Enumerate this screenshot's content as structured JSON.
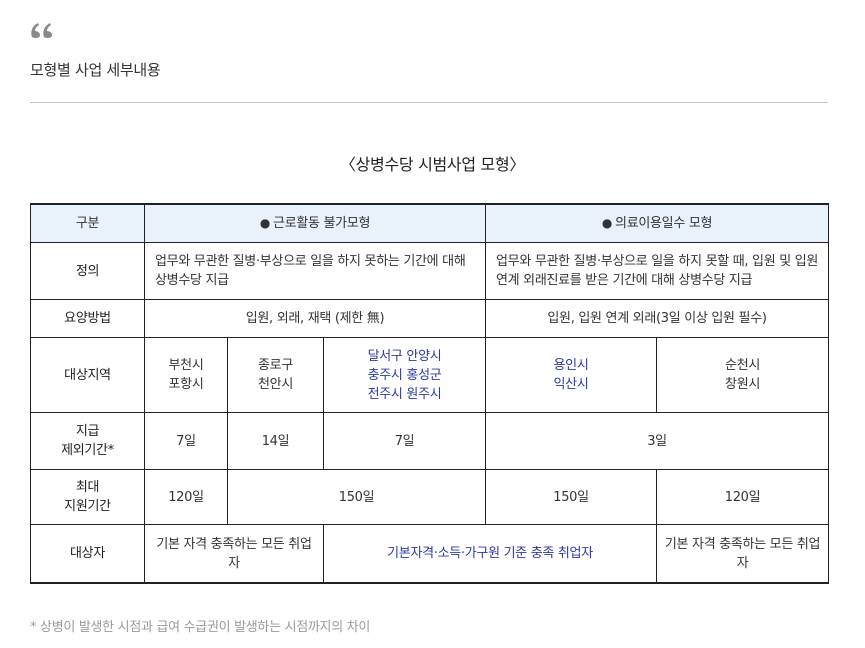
{
  "header": {
    "quote_icon": "quote-icon",
    "section_title": "모형별 사업 세부내용"
  },
  "table": {
    "title": "〈상병수당 시범사업 모형〉",
    "head": {
      "col_label": "구분",
      "model_a": "근로활동 불가모형",
      "model_b": "의료이용일수 모형",
      "bullet": "●"
    },
    "definition": {
      "label": "정의",
      "model_a": "업무와 무관한 질병·부상으로 일을 하지 못하는 기간에 대해 상병수당 지급",
      "model_b": "업무와 무관한 질병·부상으로 일을 하지 못할 때, 입원 및 입원 연계 외래진료를 받은 기간에 대해 상병수당 지급"
    },
    "method": {
      "label": "요양방법",
      "model_a": "입원, 외래, 재택 (제한 無)",
      "model_b": "입원, 입원 연계 외래(3일 이상 입원 필수)"
    },
    "region": {
      "label": "대상지역",
      "c1": [
        "부천시",
        "포항시"
      ],
      "c2": [
        "종로구",
        "천안시"
      ],
      "c3": [
        "달서구 안양시",
        "충주시 홍성군",
        "전주시 원주시"
      ],
      "c4": [
        "용인시",
        "익산시"
      ],
      "c5": [
        "순천시",
        "창원시"
      ]
    },
    "exclusion": {
      "label_line1": "지급",
      "label_line2": "제외기간*",
      "c1": "7일",
      "c2": "14일",
      "c3": "7일",
      "c45": "3일"
    },
    "max_period": {
      "label_line1": "최대",
      "label_line2": "지원기간",
      "c1": "120일",
      "c23": "150일",
      "c4": "150일",
      "c5": "120일"
    },
    "target": {
      "label": "대상자",
      "c1": "기본 자격 충족하는 모든 취업자",
      "c234": "기본자격·소득·가구원 기준 충족 취업자",
      "c5": "기본 자격 충족하는 모든 취업자"
    }
  },
  "footnote": "* 상병이 발생한 시점과 급여 수급권이 발생하는 시점까지의 차이",
  "colors": {
    "header_bg": "#e9f1fb",
    "highlight_text": "#2b3aa8",
    "footnote_text": "#9a9a9a"
  }
}
